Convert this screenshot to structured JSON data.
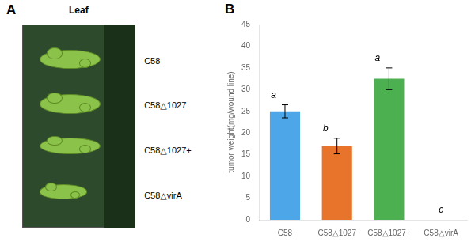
{
  "chart_data": {
    "type": "bar",
    "categories": [
      "C58",
      "C58△1027",
      "C58△1027+",
      "C58△virA"
    ],
    "values": [
      25.0,
      17.0,
      32.5,
      0.0
    ],
    "errors": [
      1.5,
      1.8,
      2.5,
      0.0
    ],
    "colors": [
      "#4da6e8",
      "#e8732a",
      "#4caf50",
      "#4caf50"
    ],
    "significance_labels": [
      "a",
      "b",
      "a",
      "c"
    ],
    "ylabel": "tumor weight(mg/wound line)",
    "ylim": [
      0,
      45
    ],
    "yticks": [
      0,
      5,
      10,
      15,
      20,
      25,
      30,
      35,
      40,
      45
    ],
    "grid": false,
    "legend": false,
    "panel_labels": [
      "A",
      "B"
    ],
    "image": {
      "label": "Leaf",
      "annotations": [
        "C58",
        "C58△1027",
        "C58△1027+",
        "C58△virA"
      ],
      "background": "#2d4a2d",
      "edge": "#1a3018",
      "tumor_color": "#8bc34a",
      "tumor_edge": "#5d8a25"
    }
  }
}
